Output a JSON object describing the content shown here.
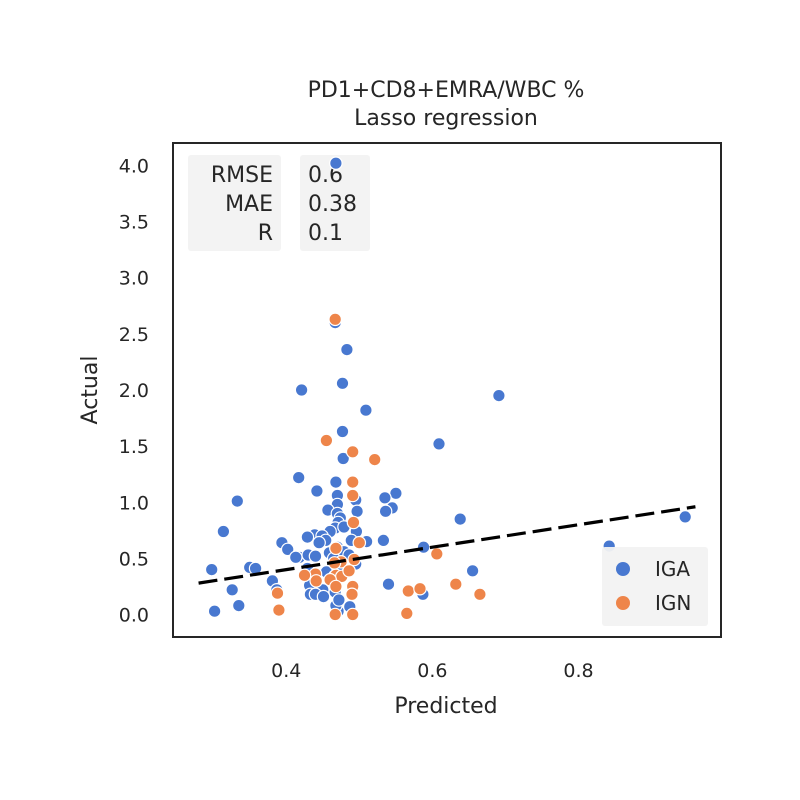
{
  "chart_data": {
    "type": "scatter",
    "title": "PD1+CD8+EMRA/WBC %",
    "subtitle": "Lasso regression",
    "xlabel": "Predicted",
    "ylabel": "Actual",
    "xlim": [
      0.245,
      0.995
    ],
    "ylim": [
      -0.2,
      4.2
    ],
    "xticks": [
      "0.4",
      "0.6",
      "0.8"
    ],
    "xtick_values": [
      0.4,
      0.6,
      0.8
    ],
    "yticks": [
      "0.0",
      "0.5",
      "1.0",
      "1.5",
      "2.0",
      "2.5",
      "3.0",
      "3.5",
      "4.0"
    ],
    "ytick_values": [
      0.0,
      0.5,
      1.0,
      1.5,
      2.0,
      2.5,
      3.0,
      3.5,
      4.0
    ],
    "grid": false,
    "legend_position": "bottom-right",
    "stats": {
      "labels": [
        "RMSE",
        "MAE",
        "R"
      ],
      "values": [
        "0.6",
        "0.38",
        "0.1"
      ]
    },
    "fit_line": {
      "x": [
        0.28,
        0.96
      ],
      "y": [
        0.28,
        0.96
      ],
      "style": "dashed",
      "color": "#000000"
    },
    "series": [
      {
        "name": "IGA",
        "color": "#4878d0",
        "points": [
          [
            0.468,
            4.02
          ],
          [
            0.467,
            2.6
          ],
          [
            0.483,
            2.36
          ],
          [
            0.477,
            2.06
          ],
          [
            0.421,
            2.0
          ],
          [
            0.509,
            1.82
          ],
          [
            0.691,
            1.95
          ],
          [
            0.477,
            1.63
          ],
          [
            0.609,
            1.52
          ],
          [
            0.478,
            1.39
          ],
          [
            0.417,
            1.22
          ],
          [
            0.468,
            1.18
          ],
          [
            0.442,
            1.1
          ],
          [
            0.47,
            1.06
          ],
          [
            0.55,
            1.08
          ],
          [
            0.333,
            1.01
          ],
          [
            0.535,
            1.04
          ],
          [
            0.47,
            0.98
          ],
          [
            0.495,
            1.02
          ],
          [
            0.497,
            0.92
          ],
          [
            0.545,
            0.95
          ],
          [
            0.536,
            0.92
          ],
          [
            0.457,
            0.93
          ],
          [
            0.47,
            0.9
          ],
          [
            0.474,
            0.86
          ],
          [
            0.471,
            0.82
          ],
          [
            0.467,
            0.77
          ],
          [
            0.479,
            0.78
          ],
          [
            0.314,
            0.74
          ],
          [
            0.46,
            0.74
          ],
          [
            0.496,
            0.74
          ],
          [
            0.439,
            0.71
          ],
          [
            0.449,
            0.7
          ],
          [
            0.429,
            0.69
          ],
          [
            0.454,
            0.66
          ],
          [
            0.51,
            0.65
          ],
          [
            0.533,
            0.66
          ],
          [
            0.489,
            0.66
          ],
          [
            0.445,
            0.64
          ],
          [
            0.47,
            0.6
          ],
          [
            0.394,
            0.64
          ],
          [
            0.402,
            0.58
          ],
          [
            0.479,
            0.56
          ],
          [
            0.486,
            0.53
          ],
          [
            0.459,
            0.55
          ],
          [
            0.418,
            0.51
          ],
          [
            0.43,
            0.53
          ],
          [
            0.413,
            0.51
          ],
          [
            0.44,
            0.52
          ],
          [
            0.465,
            0.5
          ],
          [
            0.35,
            0.42
          ],
          [
            0.358,
            0.41
          ],
          [
            0.429,
            0.41
          ],
          [
            0.455,
            0.38
          ],
          [
            0.47,
            0.43
          ],
          [
            0.495,
            0.45
          ],
          [
            0.439,
            0.34
          ],
          [
            0.466,
            0.34
          ],
          [
            0.467,
            0.3
          ],
          [
            0.381,
            0.3
          ],
          [
            0.432,
            0.26
          ],
          [
            0.387,
            0.22
          ],
          [
            0.45,
            0.22
          ],
          [
            0.433,
            0.18
          ],
          [
            0.44,
            0.18
          ],
          [
            0.451,
            0.16
          ],
          [
            0.467,
            0.2
          ],
          [
            0.326,
            0.22
          ],
          [
            0.298,
            0.4
          ],
          [
            0.54,
            0.27
          ],
          [
            0.588,
            0.6
          ],
          [
            0.638,
            0.85
          ],
          [
            0.655,
            0.39
          ],
          [
            0.587,
            0.18
          ],
          [
            0.302,
            0.03
          ],
          [
            0.335,
            0.08
          ],
          [
            0.471,
            0.03
          ],
          [
            0.468,
            0.08
          ],
          [
            0.472,
            0.13
          ],
          [
            0.487,
            0.07
          ],
          [
            0.842,
            0.61
          ],
          [
            0.946,
            0.87
          ]
        ]
      },
      {
        "name": "IGN",
        "color": "#ee854a",
        "points": [
          [
            0.467,
            2.63
          ],
          [
            0.455,
            1.55
          ],
          [
            0.491,
            1.45
          ],
          [
            0.521,
            1.38
          ],
          [
            0.491,
            1.18
          ],
          [
            0.491,
            1.06
          ],
          [
            0.492,
            0.82
          ],
          [
            0.5,
            0.64
          ],
          [
            0.468,
            0.59
          ],
          [
            0.44,
            0.36
          ],
          [
            0.468,
            0.35
          ],
          [
            0.493,
            0.49
          ],
          [
            0.475,
            0.47
          ],
          [
            0.466,
            0.46
          ],
          [
            0.476,
            0.34
          ],
          [
            0.486,
            0.39
          ],
          [
            0.46,
            0.31
          ],
          [
            0.425,
            0.35
          ],
          [
            0.441,
            0.3
          ],
          [
            0.468,
            0.25
          ],
          [
            0.388,
            0.19
          ],
          [
            0.491,
            0.25
          ],
          [
            0.49,
            0.18
          ],
          [
            0.39,
            0.04
          ],
          [
            0.467,
            0.0
          ],
          [
            0.491,
            0.0
          ],
          [
            0.606,
            0.54
          ],
          [
            0.567,
            0.21
          ],
          [
            0.583,
            0.23
          ],
          [
            0.632,
            0.27
          ],
          [
            0.665,
            0.18
          ],
          [
            0.565,
            0.01
          ]
        ]
      }
    ]
  }
}
